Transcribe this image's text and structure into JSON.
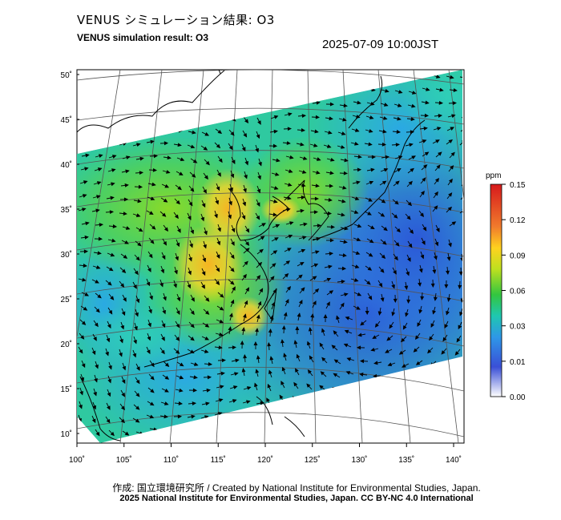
{
  "header": {
    "title_jp": "VENUS シミュレーション結果: O3",
    "title_en": "VENUS simulation result: O3",
    "timestamp": "2025-07-09 10:00JST"
  },
  "map": {
    "lat_labels": [
      "50˚",
      "45˚",
      "40˚",
      "35˚",
      "30˚",
      "25˚",
      "20˚",
      "15˚",
      "10˚"
    ],
    "lon_labels": [
      "100˚",
      "105˚",
      "110˚",
      "115˚",
      "120˚",
      "125˚",
      "130˚",
      "135˚",
      "140˚"
    ],
    "lat_values": [
      50,
      45,
      40,
      35,
      30,
      25,
      20,
      15,
      10
    ],
    "lon_values": [
      100,
      105,
      110,
      115,
      120,
      125,
      130,
      135,
      140
    ],
    "extent": {
      "lon_min": 100,
      "lon_max": 141,
      "lat_min": 9,
      "lat_max": 51
    },
    "field": "O3 concentration",
    "overlay": "wind vectors"
  },
  "colorbar": {
    "unit": "ppm",
    "tick_labels": [
      "0.15",
      "0.12",
      "0.09",
      "0.06",
      "0.03",
      "0.01",
      "0.00"
    ],
    "colors": [
      "#d7191c",
      "#f07b2c",
      "#ffd21f",
      "#bde01f",
      "#33c63f",
      "#1fc7b0",
      "#2e97e8",
      "#3a4fd6",
      "#ffffff"
    ]
  },
  "footer": {
    "credit_jp": "作成: 国立環境研究所 / Created by National Institute for Environmental Studies, Japan.",
    "credit_en": "2025 National Institute for Environmental Studies, Japan. CC BY-NC 4.0 International"
  }
}
